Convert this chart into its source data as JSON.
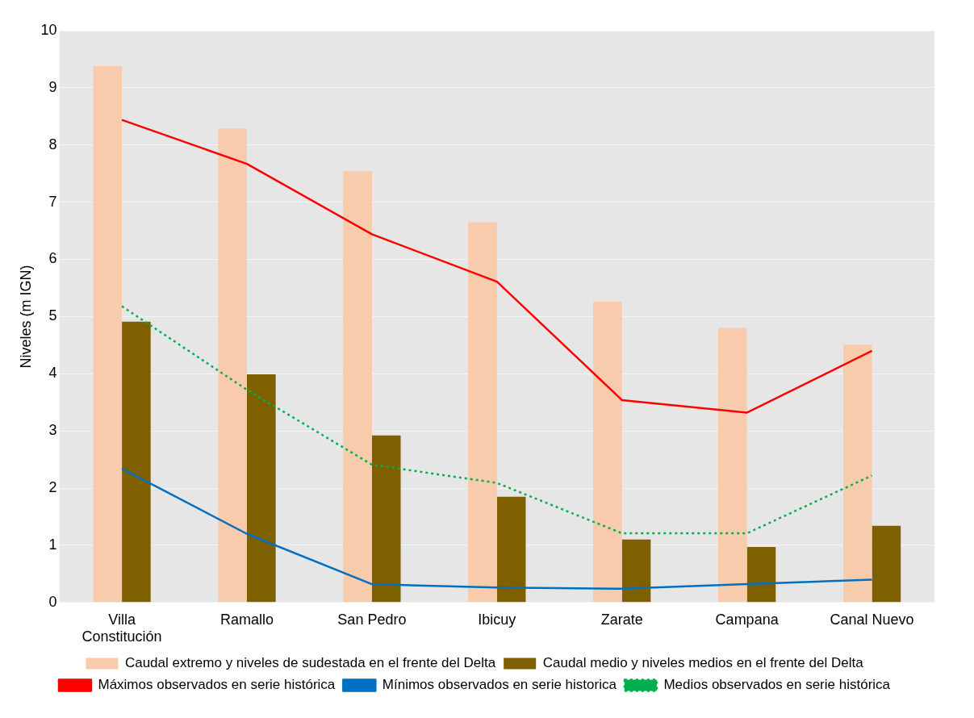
{
  "chart_data": {
    "type": "bar",
    "ylabel": "Niveles (m IGN)",
    "categories": [
      "Villa Constitución",
      "Ramallo",
      "San Pedro",
      "Ibicuy",
      "Zarate",
      "Campana",
      "Canal Nuevo"
    ],
    "series": [
      {
        "name": "Caudal extremo y niveles de sudestada en el frente del Delta",
        "color": "#f8cbad",
        "values": [
          9.38,
          8.29,
          7.54,
          6.65,
          5.26,
          4.8,
          4.51
        ]
      },
      {
        "name": "Caudal medio y niveles medios en el frente del Delta",
        "color": "#7f6000",
        "values": [
          4.91,
          3.99,
          2.92,
          1.85,
          1.1,
          0.97,
          1.34
        ]
      },
      {
        "name": "Máximos observados en serie histórica",
        "type": "line",
        "color": "#ff0000",
        "line_style": "solid",
        "values": [
          8.44,
          7.67,
          6.44,
          5.61,
          3.54,
          3.32,
          4.4
        ]
      },
      {
        "name": "Mínimos observados en serie historica",
        "type": "line",
        "color": "#0070c0",
        "line_style": "solid",
        "values": [
          2.34,
          1.2,
          0.32,
          0.26,
          0.24,
          0.32,
          0.4
        ]
      },
      {
        "name": "Medios observados en serie histórica",
        "type": "line",
        "color": "#00b050",
        "line_style": "dotted",
        "values": [
          5.18,
          3.72,
          2.41,
          2.09,
          1.21,
          1.21,
          2.22
        ]
      }
    ],
    "ylim": [
      0,
      10
    ],
    "yticks": [
      0,
      1,
      2,
      3,
      4,
      5,
      6,
      7,
      8,
      9,
      10
    ],
    "grid": "y",
    "legend": "bottom",
    "marker": "none"
  }
}
